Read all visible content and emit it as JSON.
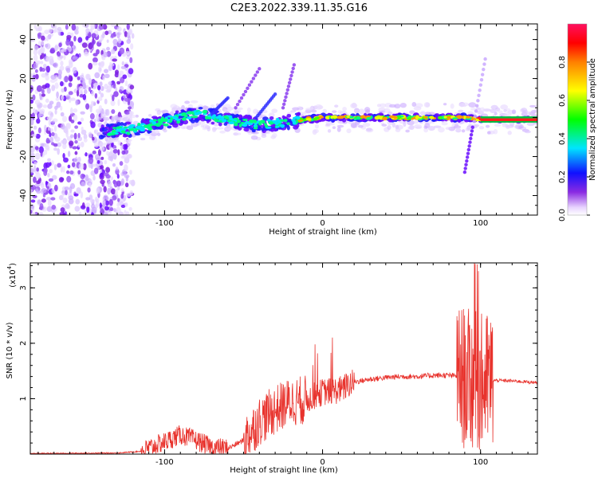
{
  "figure": {
    "title": "C2E3.2022.339.11.35.G16"
  },
  "chart_data": [
    {
      "type": "heatmap",
      "xlabel": "Height of straight line (km)",
      "ylabel": "Frequency (Hz)",
      "xlim": [
        -185,
        136
      ],
      "ylim": [
        -50,
        48
      ],
      "xticks": [
        -100,
        0,
        100
      ],
      "yticks": [
        -40,
        -20,
        0,
        20,
        40
      ],
      "colorbar": {
        "label": "Normalized spectral amplitude",
        "range": [
          0,
          1
        ],
        "ticks": [
          0.0,
          0.2,
          0.4,
          0.6,
          0.8
        ]
      },
      "ridge": {
        "description_points": [
          [
            -140,
            -7
          ],
          [
            -120,
            -6
          ],
          [
            -100,
            -2
          ],
          [
            -80,
            2
          ],
          [
            -60,
            -1
          ],
          [
            -40,
            -4
          ],
          [
            -20,
            -2
          ],
          [
            0,
            0
          ],
          [
            20,
            0
          ],
          [
            60,
            0
          ],
          [
            90,
            0
          ],
          [
            100,
            -1
          ],
          [
            136,
            -1
          ]
        ]
      }
    },
    {
      "type": "line",
      "xlabel": "Height of straight line (km)",
      "ylabel": "SNR (10 * v/v)",
      "y_multiplier": "(x10",
      "y_multiplier_exp": "4",
      "xlim": [
        -185,
        136
      ],
      "ylim": [
        0,
        3.45
      ],
      "xticks": [
        -100,
        0,
        100
      ],
      "yticks": [
        1,
        2,
        3
      ],
      "series_color": "#e8332d",
      "envelope": [
        [
          -185,
          0.01
        ],
        [
          -130,
          0.02
        ],
        [
          -115,
          0.05
        ],
        [
          -100,
          0.22
        ],
        [
          -90,
          0.35
        ],
        [
          -80,
          0.25
        ],
        [
          -70,
          0.12
        ],
        [
          -60,
          0.1
        ],
        [
          -50,
          0.25
        ],
        [
          -40,
          0.6
        ],
        [
          -30,
          0.8
        ],
        [
          -20,
          0.95
        ],
        [
          -10,
          0.98
        ],
        [
          0,
          1.12
        ],
        [
          10,
          1.15
        ],
        [
          20,
          1.3
        ],
        [
          30,
          1.35
        ],
        [
          40,
          1.38
        ],
        [
          50,
          1.4
        ],
        [
          60,
          1.4
        ],
        [
          70,
          1.42
        ],
        [
          80,
          1.42
        ],
        [
          88,
          1.4
        ],
        [
          95,
          1.3
        ],
        [
          100,
          1.25
        ],
        [
          105,
          1.32
        ],
        [
          110,
          1.33
        ],
        [
          120,
          1.32
        ],
        [
          136,
          1.29
        ]
      ]
    }
  ]
}
